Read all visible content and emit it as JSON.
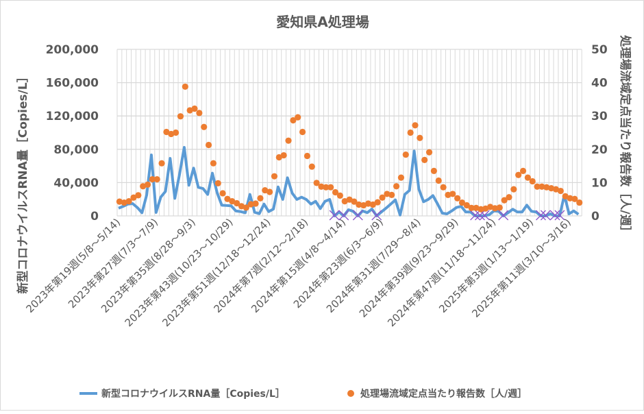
{
  "chart_data": {
    "type": "line+scatter",
    "title": "愛知県A処理場",
    "ylabel": "新型コロナウイルスRNA量［Copies/L］",
    "y2label": "処理場流域定点当たり報告数［人/週］",
    "ylim": [
      0,
      200000
    ],
    "y2lim": [
      0,
      50
    ],
    "y_ticks": [
      "0",
      "40,000",
      "80,000",
      "120,000",
      "160,000",
      "200,000"
    ],
    "y2_ticks": [
      "0",
      "10",
      "20",
      "30",
      "40",
      "50"
    ],
    "grid": true,
    "legend_position": "bottom",
    "x_tick_labels": [
      {
        "index": 0,
        "label": "2023年第19週(5/8～5/14)"
      },
      {
        "index": 8,
        "label": "2023年第27週(7/3～7/9)"
      },
      {
        "index": 16,
        "label": "2023年第35週(8/28～9/3)"
      },
      {
        "index": 24,
        "label": "2023年第43週(10/23～10/29)"
      },
      {
        "index": 32,
        "label": "2023年第51週(12/18～12/24)"
      },
      {
        "index": 40,
        "label": "2024年第7週(2/12～2/18)"
      },
      {
        "index": 48,
        "label": "2024年第15週(4/8～4/14)"
      },
      {
        "index": 56,
        "label": "2024年第23週(6/3～6/9)"
      },
      {
        "index": 64,
        "label": "2024年第31週(7/29～8/4)"
      },
      {
        "index": 72,
        "label": "2024年第39週(9/23～9/29)"
      },
      {
        "index": 80,
        "label": "2024年第47週(11/18～11/24)"
      },
      {
        "index": 88,
        "label": "2025年第3週(1/13～1/19)"
      },
      {
        "index": 96,
        "label": "2025年第11週(3/10～3/16)"
      }
    ],
    "series": [
      {
        "name": "新型コロナウイルスRNA量［Copies/L］",
        "type": "line",
        "axis": "left",
        "color": "#5B9BD5",
        "values": [
          9300,
          11500,
          14200,
          14800,
          10100,
          3800,
          25200,
          73200,
          4100,
          22500,
          29400,
          69100,
          21100,
          50000,
          82300,
          36800,
          57400,
          34300,
          32900,
          25800,
          51300,
          28000,
          12900,
          12500,
          12100,
          6000,
          5200,
          3800,
          25800,
          4400,
          2700,
          14200,
          5200,
          8200,
          34800,
          19800,
          45800,
          27400,
          19800,
          22500,
          19800,
          14200,
          17500,
          8800,
          17500,
          19800,
          0,
          4700,
          0,
          7400,
          5500,
          0,
          6000,
          3900,
          8200,
          0,
          4700,
          9300,
          14200,
          19200,
          1100,
          25800,
          30700,
          77900,
          32100,
          17000,
          19800,
          24400,
          14200,
          3300,
          2500,
          6000,
          10100,
          11500,
          4700,
          4700,
          0,
          0,
          0,
          1500,
          6000,
          5500,
          0,
          3800,
          8000,
          4700,
          4700,
          12900,
          5500,
          4700,
          0,
          0,
          2500,
          0,
          0,
          25200,
          2500,
          6000,
          2000
        ]
      },
      {
        "name": "処理場流域定点当たり報告数［人/週］",
        "type": "scatter",
        "axis": "right",
        "color": "#ED7D31",
        "values": [
          4.3,
          4.0,
          4.4,
          5.5,
          6.2,
          8.9,
          9.4,
          11.0,
          11.0,
          15.8,
          25.2,
          24.6,
          25.0,
          29.9,
          38.8,
          31.7,
          32.2,
          30.9,
          26.7,
          21.3,
          15.8,
          9.8,
          6.8,
          5.1,
          4.4,
          3.8,
          2.9,
          2.5,
          3.5,
          3.7,
          5.3,
          7.7,
          7.2,
          11.9,
          17.6,
          18.2,
          22.6,
          28.7,
          29.6,
          25.2,
          18.0,
          14.8,
          9.9,
          8.8,
          8.6,
          8.6,
          7.1,
          6.1,
          4.4,
          4.9,
          4.3,
          3.4,
          3.2,
          3.7,
          3.4,
          4.1,
          5.5,
          6.6,
          6.3,
          8.9,
          11.5,
          18.4,
          25.0,
          27.2,
          23.4,
          16.8,
          19.1,
          13.5,
          10.6,
          8.6,
          6.3,
          6.6,
          5.3,
          4.0,
          3.2,
          2.4,
          2.4,
          2.0,
          2.2,
          2.7,
          2.3,
          2.5,
          4.7,
          5.6,
          8.0,
          12.3,
          13.5,
          11.5,
          10.4,
          8.8,
          8.8,
          8.6,
          8.3,
          8.0,
          7.5,
          5.9,
          5.3,
          5.1,
          4.0
        ]
      }
    ],
    "x_marker_indices": [
      46,
      48,
      51,
      55,
      76,
      77,
      78,
      82,
      90,
      91,
      93,
      94
    ],
    "x_marker_color": "#8B55C8"
  }
}
